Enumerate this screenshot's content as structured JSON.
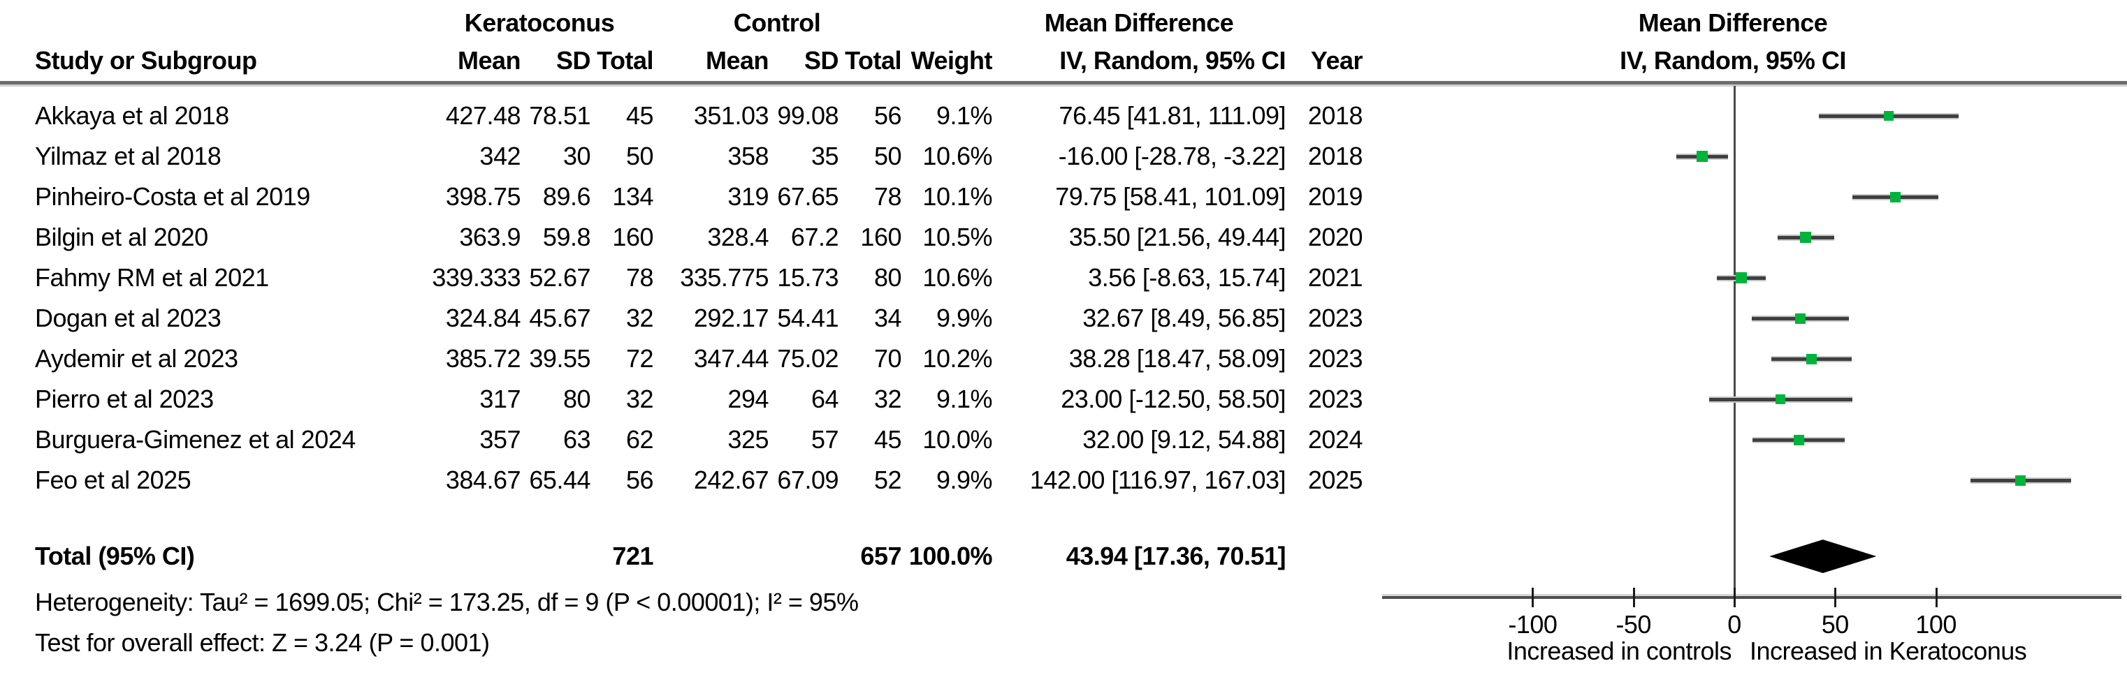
{
  "table": {
    "header": {
      "study": "Study or Subgroup",
      "group1": "Keratoconus",
      "group2": "Control",
      "mean": "Mean",
      "sd": "SD",
      "total": "Total",
      "weight": "Weight",
      "md_label": "Mean Difference",
      "md_sub": "IV, Random, 95% CI",
      "year": "Year"
    },
    "rows": [
      {
        "study": "Akkaya et al 2018",
        "mean1": "427.48",
        "sd1": "78.51",
        "total1": "45",
        "mean2": "351.03",
        "sd2": "99.08",
        "total2": "56",
        "weight": "9.1%",
        "ci": "76.45 [41.81, 111.09]",
        "year": "2018"
      },
      {
        "study": "Yilmaz et al 2018",
        "mean1": "342",
        "sd1": "30",
        "total1": "50",
        "mean2": "358",
        "sd2": "35",
        "total2": "50",
        "weight": "10.6%",
        "ci": "-16.00 [-28.78, -3.22]",
        "year": "2018"
      },
      {
        "study": "Pinheiro-Costa et al 2019",
        "mean1": "398.75",
        "sd1": "89.6",
        "total1": "134",
        "mean2": "319",
        "sd2": "67.65",
        "total2": "78",
        "weight": "10.1%",
        "ci": "79.75 [58.41, 101.09]",
        "year": "2019"
      },
      {
        "study": "Bilgin et al 2020",
        "mean1": "363.9",
        "sd1": "59.8",
        "total1": "160",
        "mean2": "328.4",
        "sd2": "67.2",
        "total2": "160",
        "weight": "10.5%",
        "ci": "35.50 [21.56, 49.44]",
        "year": "2020"
      },
      {
        "study": "Fahmy RM et al 2021",
        "mean1": "339.333",
        "sd1": "52.67",
        "total1": "78",
        "mean2": "335.775",
        "sd2": "15.73",
        "total2": "80",
        "weight": "10.6%",
        "ci": "3.56 [-8.63, 15.74]",
        "year": "2021"
      },
      {
        "study": "Dogan et al 2023",
        "mean1": "324.84",
        "sd1": "45.67",
        "total1": "32",
        "mean2": "292.17",
        "sd2": "54.41",
        "total2": "34",
        "weight": "9.9%",
        "ci": "32.67 [8.49, 56.85]",
        "year": "2023"
      },
      {
        "study": "Aydemir et al 2023",
        "mean1": "385.72",
        "sd1": "39.55",
        "total1": "72",
        "mean2": "347.44",
        "sd2": "75.02",
        "total2": "70",
        "weight": "10.2%",
        "ci": "38.28 [18.47, 58.09]",
        "year": "2023"
      },
      {
        "study": "Pierro et al 2023",
        "mean1": "317",
        "sd1": "80",
        "total1": "32",
        "mean2": "294",
        "sd2": "64",
        "total2": "32",
        "weight": "9.1%",
        "ci": "23.00 [-12.50, 58.50]",
        "year": "2023"
      },
      {
        "study": "Burguera-Gimenez et al 2024",
        "mean1": "357",
        "sd1": "63",
        "total1": "62",
        "mean2": "325",
        "sd2": "57",
        "total2": "45",
        "weight": "10.0%",
        "ci": "32.00 [9.12, 54.88]",
        "year": "2024"
      },
      {
        "study": "Feo et al 2025",
        "mean1": "384.67",
        "sd1": "65.44",
        "total1": "56",
        "mean2": "242.67",
        "sd2": "67.09",
        "total2": "52",
        "weight": "9.9%",
        "ci": "142.00 [116.97, 167.03]",
        "year": "2025"
      }
    ],
    "total": {
      "label": "Total (95% CI)",
      "total1": "721",
      "total2": "657",
      "weight": "100.0%",
      "ci": "43.94 [17.36, 70.51]"
    },
    "heterogeneity": "Heterogeneity: Tau² = 1699.05; Chi² = 173.25, df = 9 (P < 0.00001); I² = 95%",
    "overall_effect": "Test for overall effect: Z = 3.24 (P = 0.001)"
  },
  "chart_data": {
    "type": "forest",
    "title": "Mean Difference",
    "method_label": "IV, Random, 95% CI",
    "x_ticks": [
      -100,
      -50,
      0,
      50,
      100
    ],
    "axis_label_left": "Increased in controls",
    "axis_label_right": "Increased in Keratoconus",
    "colors": {
      "marker": "#00b33c",
      "ci_line": "#3f3f3f",
      "diamond": "#000000"
    },
    "studies": [
      {
        "name": "Akkaya et al 2018",
        "md": 76.45,
        "ci_low": 41.81,
        "ci_high": 111.09,
        "weight_pct": 9.1,
        "year": 2018
      },
      {
        "name": "Yilmaz et al 2018",
        "md": -16.0,
        "ci_low": -28.78,
        "ci_high": -3.22,
        "weight_pct": 10.6,
        "year": 2018
      },
      {
        "name": "Pinheiro-Costa et al 2019",
        "md": 79.75,
        "ci_low": 58.41,
        "ci_high": 101.09,
        "weight_pct": 10.1,
        "year": 2019
      },
      {
        "name": "Bilgin et al 2020",
        "md": 35.5,
        "ci_low": 21.56,
        "ci_high": 49.44,
        "weight_pct": 10.5,
        "year": 2020
      },
      {
        "name": "Fahmy RM et al 2021",
        "md": 3.56,
        "ci_low": -8.63,
        "ci_high": 15.74,
        "weight_pct": 10.6,
        "year": 2021
      },
      {
        "name": "Dogan et al 2023",
        "md": 32.67,
        "ci_low": 8.49,
        "ci_high": 56.85,
        "weight_pct": 9.9,
        "year": 2023
      },
      {
        "name": "Aydemir et al 2023",
        "md": 38.28,
        "ci_low": 18.47,
        "ci_high": 58.09,
        "weight_pct": 10.2,
        "year": 2023
      },
      {
        "name": "Pierro et al 2023",
        "md": 23.0,
        "ci_low": -12.5,
        "ci_high": 58.5,
        "weight_pct": 9.1,
        "year": 2023
      },
      {
        "name": "Burguera-Gimenez et al 2024",
        "md": 32.0,
        "ci_low": 9.12,
        "ci_high": 54.88,
        "weight_pct": 10.0,
        "year": 2024
      },
      {
        "name": "Feo et al 2025",
        "md": 142.0,
        "ci_low": 116.97,
        "ci_high": 167.03,
        "weight_pct": 9.9,
        "year": 2025
      }
    ],
    "total": {
      "md": 43.94,
      "ci_low": 17.36,
      "ci_high": 70.51,
      "total1": 721,
      "total2": 657,
      "weight_pct": 100.0
    }
  }
}
